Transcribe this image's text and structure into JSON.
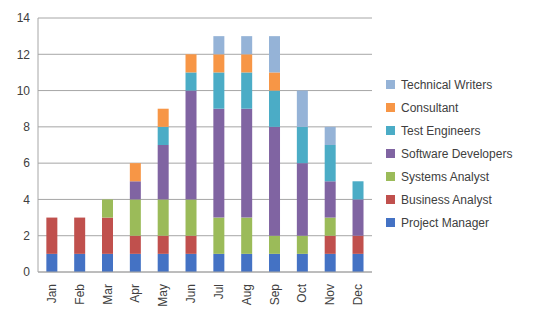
{
  "chart_data": {
    "type": "bar",
    "stacked": true,
    "grid": true,
    "legend": "right",
    "categories": [
      "Jan",
      "Feb",
      "Mar",
      "Apr",
      "May",
      "Jun",
      "Jul",
      "Aug",
      "Sep",
      "Oct",
      "Nov",
      "Dec"
    ],
    "ylim": [
      0,
      14
    ],
    "yticks": [
      0,
      2,
      4,
      6,
      8,
      10,
      12,
      14
    ],
    "series": [
      {
        "name": "Project Manager",
        "color": "#4472c4",
        "values": [
          1,
          1,
          1,
          1,
          1,
          1,
          1,
          1,
          1,
          1,
          1,
          1
        ]
      },
      {
        "name": "Business Analyst",
        "color": "#c0504d",
        "values": [
          2,
          2,
          2,
          1,
          1,
          1,
          0,
          0,
          0,
          0,
          1,
          1
        ]
      },
      {
        "name": "Systems Analyst",
        "color": "#9bbb59",
        "values": [
          0,
          0,
          1,
          2,
          2,
          2,
          2,
          2,
          1,
          1,
          1,
          0
        ]
      },
      {
        "name": "Software Developers",
        "color": "#8064a2",
        "values": [
          0,
          0,
          0,
          1,
          3,
          6,
          6,
          6,
          6,
          4,
          2,
          2
        ]
      },
      {
        "name": "Test Engineers",
        "color": "#4bacc6",
        "values": [
          0,
          0,
          0,
          0,
          1,
          1,
          2,
          2,
          2,
          2,
          2,
          1
        ]
      },
      {
        "name": "Consultant",
        "color": "#f79646",
        "values": [
          0,
          0,
          0,
          1,
          1,
          1,
          1,
          1,
          1,
          0,
          0,
          0
        ]
      },
      {
        "name": "Technical Writers",
        "color": "#95b3d7",
        "values": [
          0,
          0,
          0,
          0,
          0,
          0,
          1,
          1,
          2,
          2,
          1,
          0
        ]
      }
    ]
  }
}
